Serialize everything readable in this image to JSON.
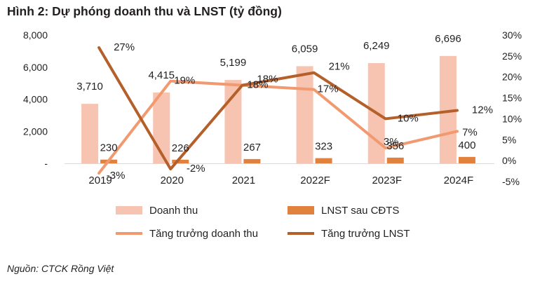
{
  "title": "Hình 2: Dự phóng doanh thu và LNST (tỷ đồng)",
  "source": "Nguồn: CTCK Rồng Việt",
  "colors": {
    "revenue_bar": "#f7c4b2",
    "profit_bar": "#e0823d",
    "revenue_growth_line": "#f19a70",
    "profit_growth_line": "#b5602a"
  },
  "chart_data": {
    "type": "bar",
    "categories": [
      "2019",
      "2020",
      "2021",
      "2022F",
      "2023F",
      "2024F"
    ],
    "y_left": {
      "ylim": [
        0,
        8000
      ],
      "ticks": [
        0,
        2000,
        4000,
        6000,
        8000
      ],
      "tick_labels": [
        "-",
        "2,000",
        "4,000",
        "6,000",
        "8,000"
      ]
    },
    "y_right": {
      "ylim": [
        -5,
        30
      ],
      "ticks": [
        -5,
        0,
        5,
        10,
        15,
        20,
        25,
        30
      ],
      "tick_labels": [
        "-5%",
        "0%",
        "5%",
        "10%",
        "15%",
        "20%",
        "25%",
        "30%"
      ]
    },
    "series": [
      {
        "name": "Doanh thu",
        "kind": "bar",
        "axis": "left",
        "values": [
          3710,
          4415,
          5199,
          6059,
          6249,
          6696
        ],
        "labels": [
          "3,710",
          "4,415",
          "5,199",
          "6,059",
          "6,249",
          "6,696"
        ]
      },
      {
        "name": "LNST sau CĐTS",
        "kind": "bar",
        "axis": "left",
        "values": [
          230,
          226,
          267,
          323,
          356,
          400
        ],
        "labels": [
          "230",
          "226",
          "267",
          "323",
          "356",
          "400"
        ]
      },
      {
        "name": "Tăng trưởng doanh thu",
        "kind": "line",
        "axis": "right",
        "values": [
          -3,
          19,
          18,
          17,
          3,
          7
        ],
        "labels": [
          "-3%",
          "19%",
          "18%",
          "17%",
          "3%",
          "7%"
        ]
      },
      {
        "name": "Tăng trưởng LNST",
        "kind": "line",
        "axis": "right",
        "values": [
          27,
          -2,
          18,
          21,
          10,
          12
        ],
        "labels": [
          "27%",
          "-2%",
          "18%",
          "21%",
          "10%",
          "12%"
        ]
      }
    ],
    "legend": "bottom",
    "grid": false
  }
}
